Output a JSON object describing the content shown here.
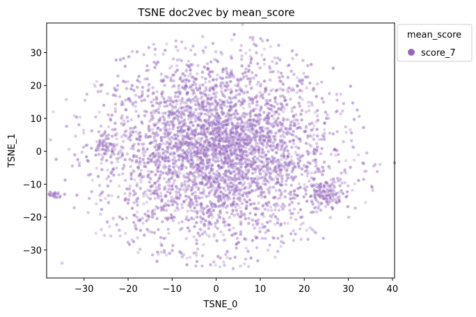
{
  "chart_data": {
    "type": "scatter",
    "title": "TSNE doc2vec by mean_score",
    "xlabel": "TSNE_0",
    "ylabel": "TSNE_1",
    "xlim": [
      -38.5,
      40.5
    ],
    "ylim": [
      -38.5,
      39.0
    ],
    "xticks": [
      -30,
      -20,
      -10,
      0,
      10,
      20,
      30,
      40
    ],
    "yticks": [
      -30,
      -20,
      -10,
      0,
      10,
      20,
      30
    ],
    "grid": false,
    "legend": {
      "title": "mean_score",
      "placement": "outside-top-right",
      "entries": [
        "score_7"
      ]
    },
    "series": [
      {
        "name": "score_7",
        "color": "#9467bd",
        "distribution": "approx 4000 points in a roughly elliptical cloud centered near (0, 0), densest in the center; small dense clusters near (-25, 2), (25, -13) and (-37, -13)",
        "approx_count": 4000,
        "clusters": [
          {
            "cx": 0,
            "cy": 0,
            "sx": 13.0,
            "sy": 14.5,
            "weight": 0.9
          },
          {
            "cx": -25,
            "cy": 2,
            "sx": 1.3,
            "sy": 1.6,
            "weight": 0.012
          },
          {
            "cx": 25,
            "cy": -13,
            "sx": 2.0,
            "sy": 1.8,
            "weight": 0.03
          },
          {
            "cx": -37,
            "cy": -13,
            "sx": 0.7,
            "sy": 0.6,
            "weight": 0.006
          },
          {
            "cx": 2,
            "cy": 3,
            "sx": 5.0,
            "sy": 4.0,
            "weight": 0.052
          }
        ],
        "outliers": [
          [
            -35,
            -34
          ],
          [
            40.5,
            -3.5
          ],
          [
            6,
            38.5
          ],
          [
            -37,
            12
          ]
        ]
      }
    ]
  }
}
